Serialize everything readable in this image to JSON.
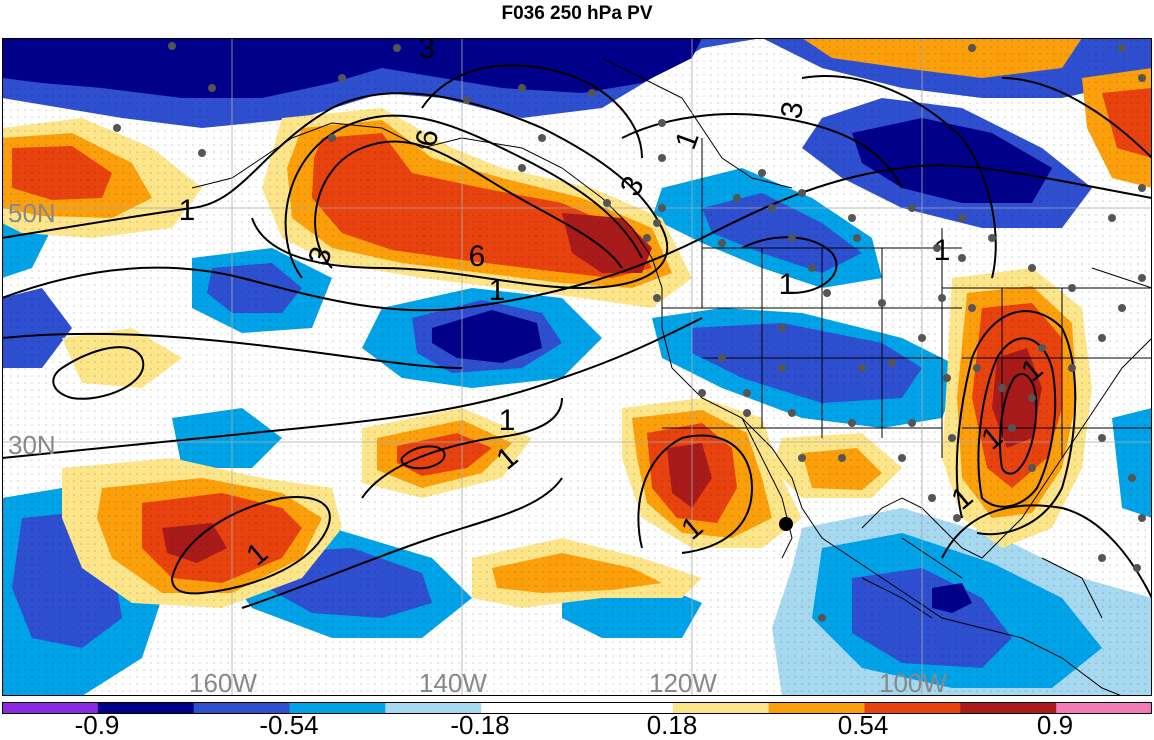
{
  "title": "F036 250 hPa PV",
  "map": {
    "latitude_labels": [
      "50N",
      "30N"
    ],
    "longitude_labels": [
      "160W",
      "140W",
      "120W",
      "100W"
    ],
    "contour_labels": [
      "3",
      "6",
      "1",
      "3",
      "6",
      "3",
      "1",
      "3",
      "1",
      "1",
      "1",
      "1",
      "1",
      "1",
      "1",
      "1",
      "1",
      "1"
    ],
    "label_color": "#888888"
  },
  "colorbar": {
    "colors": [
      "#8a2be2",
      "#00008b",
      "#2e4fcf",
      "#00a2e8",
      "#a6d8f0",
      "#ffffff",
      "#ffffff",
      "#fde58a",
      "#fb9f0b",
      "#e8420e",
      "#a91b1b",
      "#f47bb5"
    ],
    "tick_labels": [
      "-0.9",
      "-0.54",
      "-0.18",
      "0.18",
      "0.54",
      "0.9"
    ]
  }
}
